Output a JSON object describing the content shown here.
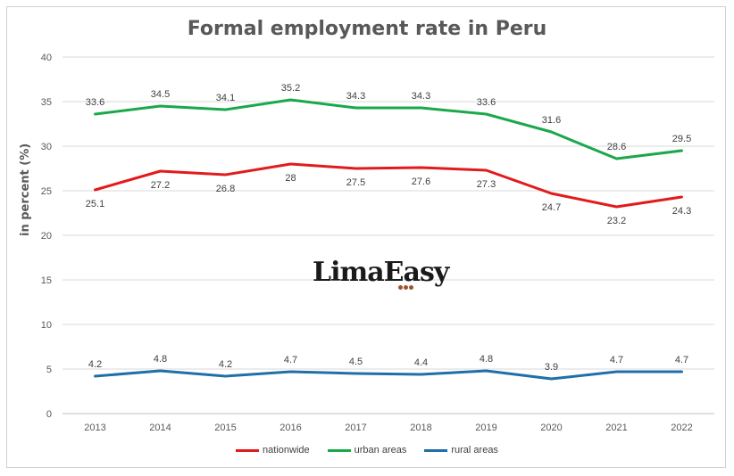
{
  "chart_data": {
    "type": "line",
    "title": "Formal employment rate in Peru",
    "ylabel": "in percent (%)",
    "xlabel": "",
    "ylim": [
      0,
      40
    ],
    "yticks": [
      0,
      5,
      10,
      15,
      20,
      25,
      30,
      35,
      40
    ],
    "grid": true,
    "legend_position": "bottom",
    "categories": [
      "2013",
      "2014",
      "2015",
      "2016",
      "2017",
      "2018",
      "2019",
      "2020",
      "2021",
      "2022"
    ],
    "series": [
      {
        "name": "nationwide",
        "color": "#e31a1c",
        "label_position": "below",
        "values": [
          25.1,
          27.2,
          26.8,
          28,
          27.5,
          27.6,
          27.3,
          24.7,
          23.2,
          24.3
        ]
      },
      {
        "name": "urban areas",
        "color": "#1aa84b",
        "label_position": "above",
        "values": [
          33.6,
          34.5,
          34.1,
          35.2,
          34.3,
          34.3,
          33.6,
          31.6,
          28.6,
          29.5
        ]
      },
      {
        "name": "rural areas",
        "color": "#1f6fa8",
        "label_position": "above",
        "values": [
          4.2,
          4.8,
          4.2,
          4.7,
          4.5,
          4.4,
          4.8,
          3.9,
          4.7,
          4.7
        ]
      }
    ]
  },
  "watermark": {
    "text": "LimaEasy"
  }
}
